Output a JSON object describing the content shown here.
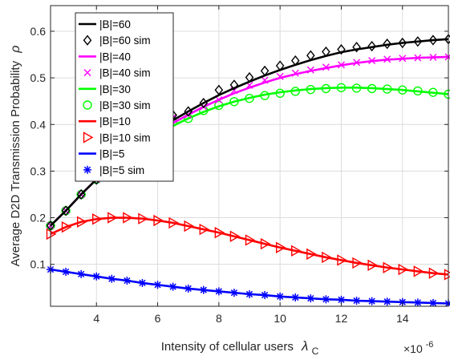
{
  "chart_data": {
    "type": "line",
    "title": "",
    "xlabel": "Intensity of cellular users",
    "xlabel_symbol": "λ",
    "xlabel_subscript": "C",
    "ylabel": "Average D2D Transmission Probability",
    "ylabel_symbol": "ρ",
    "x_exponent_label": "×10",
    "x_exponent_power": "-6",
    "xlim": [
      2.5,
      15.5
    ],
    "ylim": [
      0.01,
      0.655
    ],
    "xticks": [
      4,
      6,
      8,
      10,
      12,
      14
    ],
    "yticks": [
      0.1,
      0.2,
      0.3,
      0.4,
      0.5,
      0.6
    ],
    "grid": true,
    "legend_position": "top-left",
    "x": [
      2.5,
      3.0,
      3.5,
      4.0,
      4.5,
      5.0,
      5.5,
      6.0,
      6.5,
      7.0,
      7.5,
      8.0,
      8.5,
      9.0,
      9.5,
      10.0,
      10.5,
      11.0,
      11.5,
      12.0,
      12.5,
      13.0,
      13.5,
      14.0,
      14.5,
      15.0,
      15.5
    ],
    "series": [
      {
        "name": "|B|=60",
        "kind": "line",
        "color": "#000000",
        "values": [
          0.183,
          0.215,
          0.25,
          0.282,
          0.31,
          0.338,
          0.362,
          0.385,
          0.409,
          0.428,
          0.446,
          0.463,
          0.478,
          0.492,
          0.505,
          0.517,
          0.528,
          0.538,
          0.547,
          0.555,
          0.561,
          0.566,
          0.571,
          0.575,
          0.578,
          0.581,
          0.583
        ]
      },
      {
        "name": "|B|=60 sim",
        "kind": "marker",
        "marker": "diamond",
        "color": "#000000",
        "values": [
          0.183,
          0.215,
          0.25,
          0.282,
          0.31,
          0.338,
          0.362,
          0.386,
          0.42,
          0.428,
          0.446,
          0.474,
          0.485,
          0.501,
          0.515,
          0.526,
          0.537,
          0.548,
          0.556,
          0.561,
          0.566,
          0.568,
          0.573,
          0.575,
          0.578,
          0.581,
          0.583
        ]
      },
      {
        "name": "|B|=40",
        "kind": "line",
        "color": "#ff00ff",
        "values": [
          0.183,
          0.215,
          0.25,
          0.282,
          0.31,
          0.337,
          0.36,
          0.382,
          0.403,
          0.421,
          0.438,
          0.453,
          0.467,
          0.479,
          0.49,
          0.5,
          0.508,
          0.515,
          0.521,
          0.527,
          0.532,
          0.536,
          0.539,
          0.541,
          0.543,
          0.544,
          0.545
        ]
      },
      {
        "name": "|B|=40 sim",
        "kind": "marker",
        "marker": "x",
        "color": "#ff00ff",
        "values": [
          0.183,
          0.215,
          0.25,
          0.282,
          0.31,
          0.337,
          0.36,
          0.382,
          0.415,
          0.421,
          0.438,
          0.453,
          0.473,
          0.484,
          0.495,
          0.503,
          0.51,
          0.517,
          0.523,
          0.528,
          0.533,
          0.537,
          0.54,
          0.542,
          0.543,
          0.544,
          0.545
        ]
      },
      {
        "name": "|B|=30",
        "kind": "line",
        "color": "#00ff00",
        "values": [
          0.183,
          0.215,
          0.25,
          0.282,
          0.31,
          0.336,
          0.358,
          0.378,
          0.397,
          0.413,
          0.427,
          0.439,
          0.449,
          0.457,
          0.464,
          0.469,
          0.473,
          0.476,
          0.478,
          0.479,
          0.479,
          0.478,
          0.476,
          0.474,
          0.471,
          0.468,
          0.465
        ]
      },
      {
        "name": "|B|=30 sim",
        "kind": "marker",
        "marker": "circle",
        "color": "#00ff00",
        "values": [
          0.183,
          0.215,
          0.25,
          0.282,
          0.31,
          0.336,
          0.358,
          0.378,
          0.405,
          0.413,
          0.43,
          0.441,
          0.449,
          0.456,
          0.462,
          0.467,
          0.471,
          0.475,
          0.477,
          0.479,
          0.478,
          0.477,
          0.476,
          0.474,
          0.472,
          0.469,
          0.465
        ]
      },
      {
        "name": "|B|=10",
        "kind": "line",
        "color": "#ff0000",
        "values": [
          0.165,
          0.18,
          0.191,
          0.197,
          0.2,
          0.2,
          0.198,
          0.194,
          0.189,
          0.182,
          0.175,
          0.168,
          0.16,
          0.152,
          0.144,
          0.136,
          0.129,
          0.122,
          0.115,
          0.109,
          0.103,
          0.098,
          0.093,
          0.089,
          0.085,
          0.081,
          0.078
        ]
      },
      {
        "name": "|B|=10 sim",
        "kind": "marker",
        "marker": "triangle-right",
        "color": "#ff0000",
        "values": [
          0.165,
          0.18,
          0.191,
          0.197,
          0.2,
          0.2,
          0.198,
          0.194,
          0.189,
          0.182,
          0.175,
          0.168,
          0.16,
          0.152,
          0.144,
          0.136,
          0.129,
          0.122,
          0.115,
          0.109,
          0.103,
          0.098,
          0.093,
          0.089,
          0.085,
          0.081,
          0.078
        ]
      },
      {
        "name": "|B|=5",
        "kind": "line",
        "color": "#0000ff",
        "values": [
          0.089,
          0.084,
          0.079,
          0.074,
          0.069,
          0.065,
          0.06,
          0.056,
          0.052,
          0.048,
          0.045,
          0.042,
          0.039,
          0.036,
          0.034,
          0.031,
          0.029,
          0.027,
          0.025,
          0.024,
          0.022,
          0.021,
          0.02,
          0.019,
          0.018,
          0.017,
          0.016
        ]
      },
      {
        "name": "|B|=5 sim",
        "kind": "marker",
        "marker": "asterisk",
        "color": "#0000ff",
        "values": [
          0.089,
          0.084,
          0.079,
          0.074,
          0.069,
          0.065,
          0.06,
          0.056,
          0.052,
          0.048,
          0.045,
          0.042,
          0.039,
          0.036,
          0.034,
          0.031,
          0.029,
          0.027,
          0.025,
          0.024,
          0.022,
          0.021,
          0.02,
          0.019,
          0.018,
          0.017,
          0.016
        ]
      }
    ]
  }
}
